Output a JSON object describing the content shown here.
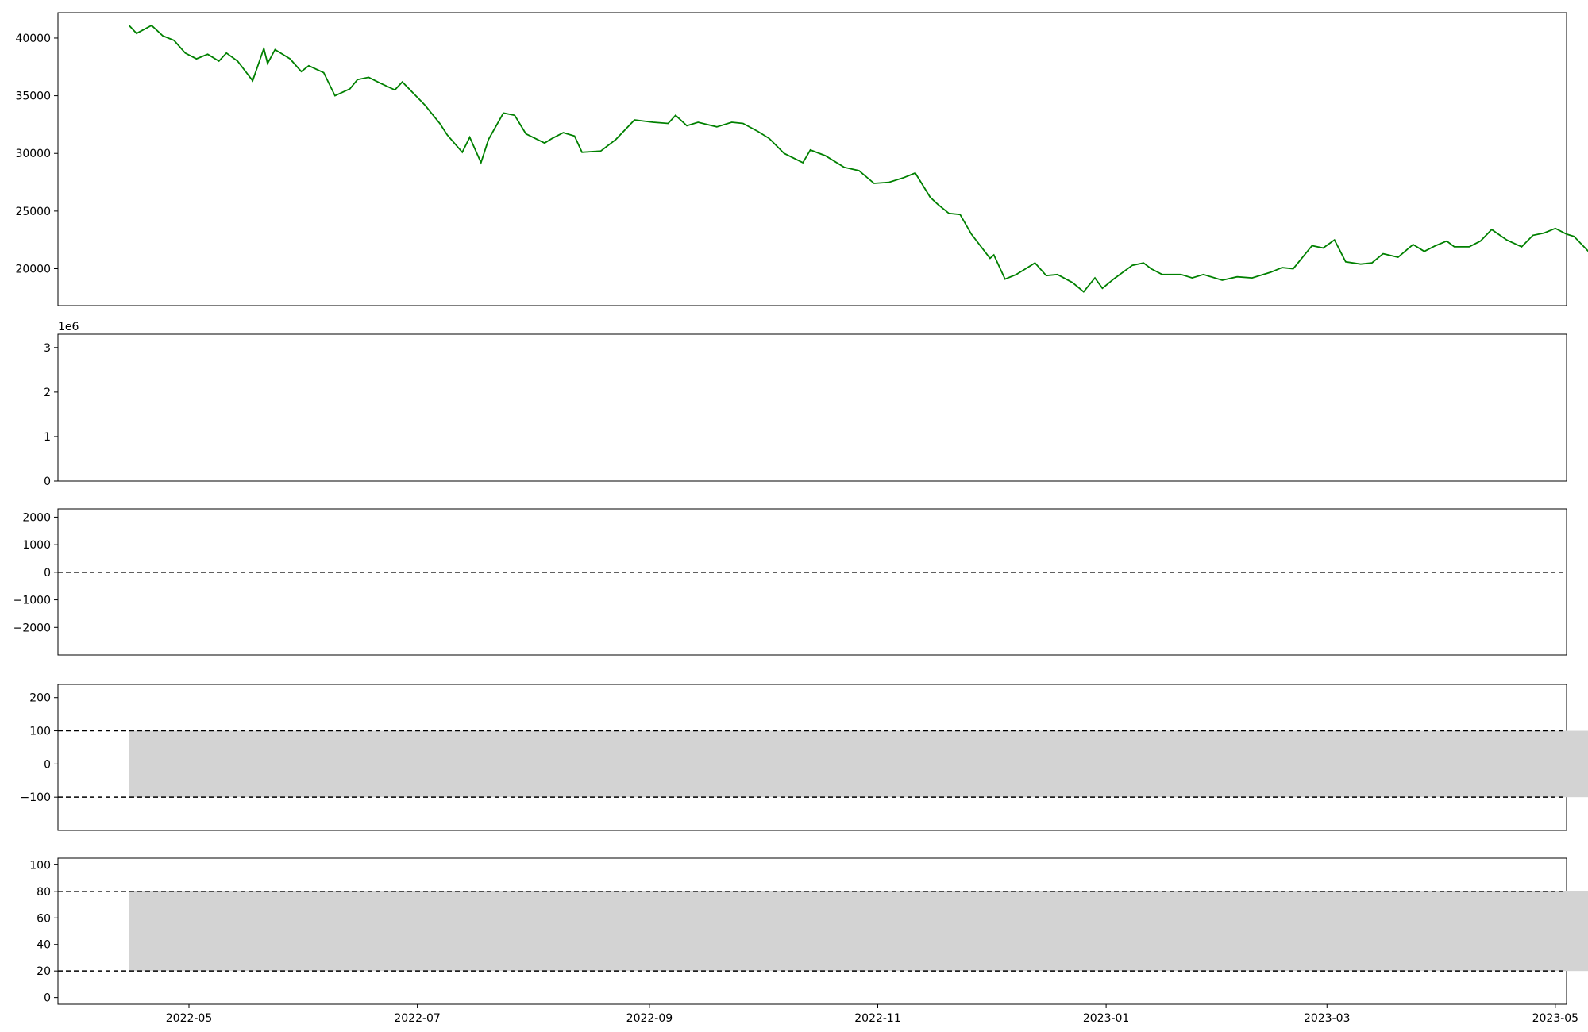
{
  "chart_data": [
    {
      "type": "line",
      "panel": "price",
      "color": "#008000",
      "yticks": [
        20000,
        25000,
        30000,
        35000,
        40000
      ],
      "ylim": [
        16800,
        42200
      ],
      "xlim": [
        "2022-03-27",
        "2023-05-04"
      ],
      "series": [
        {
          "values_by_date": [
            [
              "2022-04-15",
              41100
            ],
            [
              "2022-04-17",
              40400
            ],
            [
              "2022-04-21",
              41100
            ],
            [
              "2022-04-24",
              40200
            ],
            [
              "2022-04-27",
              39800
            ],
            [
              "2022-04-30",
              38700
            ],
            [
              "2022-05-03",
              38200
            ],
            [
              "2022-05-06",
              38600
            ],
            [
              "2022-05-09",
              38000
            ],
            [
              "2022-05-11",
              38700
            ],
            [
              "2022-05-14",
              38000
            ],
            [
              "2022-05-18",
              36300
            ],
            [
              "2022-05-21",
              39100
            ],
            [
              "2022-05-22",
              37800
            ],
            [
              "2022-05-24",
              39000
            ],
            [
              "2022-05-28",
              38200
            ],
            [
              "2022-05-31",
              37100
            ],
            [
              "2022-06-02",
              37600
            ],
            [
              "2022-06-06",
              37000
            ],
            [
              "2022-06-09",
              35000
            ],
            [
              "2022-06-13",
              35600
            ],
            [
              "2022-06-15",
              36400
            ],
            [
              "2022-06-18",
              36600
            ],
            [
              "2022-06-21",
              36100
            ],
            [
              "2022-06-25",
              35500
            ],
            [
              "2022-06-27",
              36200
            ],
            [
              "2022-07-03",
              34200
            ],
            [
              "2022-07-07",
              32600
            ],
            [
              "2022-07-09",
              31600
            ],
            [
              "2022-07-13",
              30100
            ],
            [
              "2022-07-15",
              31400
            ],
            [
              "2022-07-18",
              29200
            ],
            [
              "2022-07-20",
              31200
            ],
            [
              "2022-07-24",
              33500
            ],
            [
              "2022-07-27",
              33300
            ],
            [
              "2022-07-30",
              31700
            ],
            [
              "2022-08-04",
              30900
            ],
            [
              "2022-08-06",
              31300
            ],
            [
              "2022-08-09",
              31800
            ],
            [
              "2022-08-12",
              31500
            ],
            [
              "2022-08-14",
              30100
            ],
            [
              "2022-08-19",
              30200
            ],
            [
              "2022-08-23",
              31200
            ],
            [
              "2022-08-28",
              32900
            ],
            [
              "2022-09-02",
              32700
            ],
            [
              "2022-09-06",
              32600
            ],
            [
              "2022-09-08",
              33300
            ],
            [
              "2022-09-11",
              32400
            ],
            [
              "2022-09-14",
              32700
            ],
            [
              "2022-09-19",
              32300
            ],
            [
              "2022-09-23",
              32700
            ],
            [
              "2022-09-26",
              32600
            ],
            [
              "2022-09-30",
              31900
            ],
            [
              "2022-10-03",
              31300
            ],
            [
              "2022-10-07",
              30000
            ],
            [
              "2022-10-12",
              29200
            ],
            [
              "2022-10-14",
              30300
            ],
            [
              "2022-10-18",
              29800
            ],
            [
              "2022-10-23",
              28800
            ],
            [
              "2022-10-27",
              28500
            ],
            [
              "2022-10-31",
              27400
            ],
            [
              "2022-11-04",
              27500
            ],
            [
              "2022-11-08",
              27900
            ],
            [
              "2022-11-11",
              28300
            ],
            [
              "2022-11-15",
              26200
            ],
            [
              "2022-11-17",
              25600
            ],
            [
              "2022-11-20",
              24800
            ],
            [
              "2022-11-23",
              24700
            ],
            [
              "2022-11-26",
              23000
            ],
            [
              "2022-12-01",
              20900
            ],
            [
              "2022-12-02",
              21200
            ],
            [
              "2022-12-05",
              19100
            ],
            [
              "2022-12-08",
              19500
            ],
            [
              "2022-12-10",
              19900
            ],
            [
              "2022-12-13",
              20500
            ],
            [
              "2022-12-16",
              19400
            ],
            [
              "2022-12-19",
              19500
            ],
            [
              "2022-12-23",
              18800
            ],
            [
              "2022-12-26",
              18000
            ],
            [
              "2022-12-29",
              19200
            ],
            [
              "2022-12-31",
              18300
            ],
            [
              "2023-01-03",
              19100
            ],
            [
              "2023-01-08",
              20300
            ],
            [
              "2023-01-11",
              20500
            ],
            [
              "2023-01-13",
              20000
            ],
            [
              "2023-01-16",
              19500
            ],
            [
              "2023-01-21",
              19500
            ],
            [
              "2023-01-24",
              19200
            ],
            [
              "2023-01-27",
              19500
            ],
            [
              "2023-02-01",
              19000
            ],
            [
              "2023-02-05",
              19300
            ],
            [
              "2023-02-09",
              19200
            ],
            [
              "2023-02-14",
              19700
            ],
            [
              "2023-02-17",
              20100
            ],
            [
              "2023-02-20",
              20000
            ],
            [
              "2023-02-25",
              22000
            ],
            [
              "2023-02-28",
              21800
            ],
            [
              "2023-03-03",
              22500
            ],
            [
              "2023-03-06",
              20600
            ],
            [
              "2023-03-10",
              20400
            ],
            [
              "2023-03-13",
              20500
            ],
            [
              "2023-03-16",
              21300
            ],
            [
              "2023-03-20",
              21000
            ],
            [
              "2023-03-24",
              22100
            ],
            [
              "2023-03-27",
              21500
            ],
            [
              "2023-03-30",
              22000
            ],
            [
              "2023-04-02",
              22400
            ],
            [
              "2023-04-04",
              21900
            ],
            [
              "2023-04-08",
              21900
            ],
            [
              "2023-04-11",
              22400
            ],
            [
              "2023-04-14",
              23400
            ],
            [
              "2023-04-18",
              22500
            ],
            [
              "2023-04-22",
              21900
            ],
            [
              "2023-04-25",
              22900
            ],
            [
              "2023-04-28",
              23100
            ],
            [
              "2023-05-01",
              23500
            ],
            [
              "2023-05-04",
              23000
            ],
            [
              "2023-05-06",
              22800
            ],
            [
              "2023-05-11",
              21100
            ]
          ]
        }
      ],
      "note_values_render": "price"
    }
  ]
}
